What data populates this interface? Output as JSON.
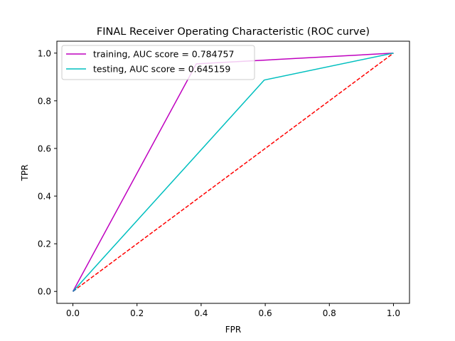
{
  "chart_data": {
    "type": "line",
    "title": "FINAL Receiver Operating Characteristic (ROC curve)",
    "xlabel": "FPR",
    "ylabel": "TPR",
    "xlim": [
      -0.05,
      1.05
    ],
    "ylim": [
      -0.05,
      1.05
    ],
    "xticks": [
      0.0,
      0.2,
      0.4,
      0.6,
      0.8,
      1.0
    ],
    "yticks": [
      0.0,
      0.2,
      0.4,
      0.6,
      0.8,
      1.0
    ],
    "xtick_labels": [
      "0.0",
      "0.2",
      "0.4",
      "0.6",
      "0.8",
      "1.0"
    ],
    "ytick_labels": [
      "0.0",
      "0.2",
      "0.4",
      "0.6",
      "0.8",
      "1.0"
    ],
    "grid": false,
    "legend_position": "top-left",
    "series": [
      {
        "name": "training, AUC score = 0.784757",
        "color": "#bf00bf",
        "style": "solid",
        "x": [
          0.0,
          0.385,
          1.0
        ],
        "y": [
          0.0,
          0.955,
          1.0
        ]
      },
      {
        "name": "testing, AUC score = 0.645159",
        "color": "#00bfbf",
        "style": "solid",
        "x": [
          0.0,
          0.597,
          1.0
        ],
        "y": [
          0.0,
          0.887,
          1.0
        ]
      },
      {
        "color": "#ff0000",
        "style": "dashed",
        "x": [
          0.0,
          1.0
        ],
        "y": [
          0.0,
          1.0
        ]
      },
      {
        "color": "#1f77b4",
        "style": "solid",
        "x": [
          0.0,
          0.01
        ],
        "y": [
          0.0,
          0.01
        ]
      }
    ]
  }
}
